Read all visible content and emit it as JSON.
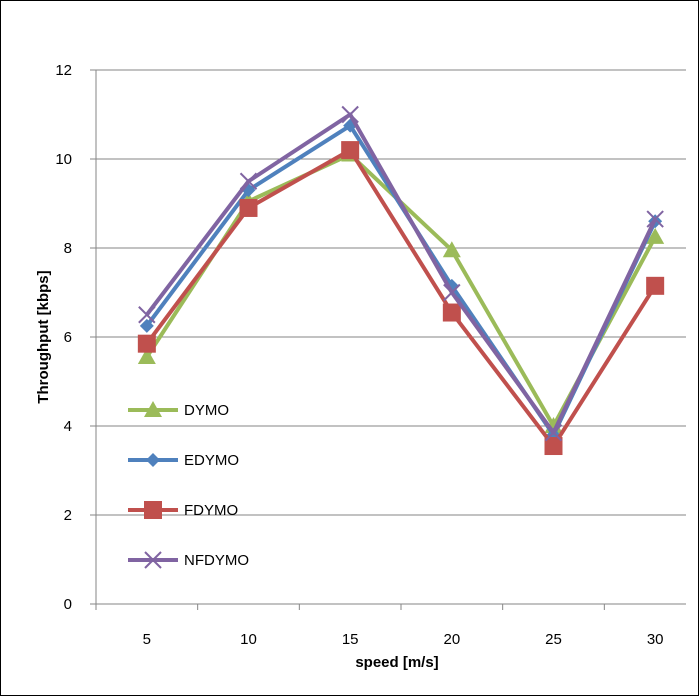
{
  "chart_data": {
    "type": "line",
    "title": "",
    "xlabel": "speed [m/s]",
    "ylabel": "Throughput [kbps]",
    "categories": [
      "5",
      "10",
      "15",
      "20",
      "25",
      "30"
    ],
    "ylim": [
      0,
      12
    ],
    "yticks": [
      "0",
      "2",
      "4",
      "6",
      "8",
      "10",
      "12"
    ],
    "grid": "horizontal",
    "legend": "left-center",
    "series": [
      {
        "name": "DYMO",
        "values": [
          5.55,
          9.05,
          10.1,
          7.95,
          4.0,
          8.25
        ],
        "color": "#9BBB59",
        "marker": "triangle"
      },
      {
        "name": "EDYMO",
        "values": [
          6.25,
          9.3,
          10.75,
          7.15,
          3.8,
          8.6
        ],
        "color": "#4F81BD",
        "marker": "diamond"
      },
      {
        "name": "FDYMO",
        "values": [
          5.85,
          8.9,
          10.2,
          6.55,
          3.55,
          7.15
        ],
        "color": "#C0504D",
        "marker": "square"
      },
      {
        "name": "NFDYMO",
        "values": [
          6.5,
          9.5,
          11.0,
          7.0,
          3.85,
          8.65
        ],
        "color": "#8064A2",
        "marker": "x"
      }
    ]
  }
}
